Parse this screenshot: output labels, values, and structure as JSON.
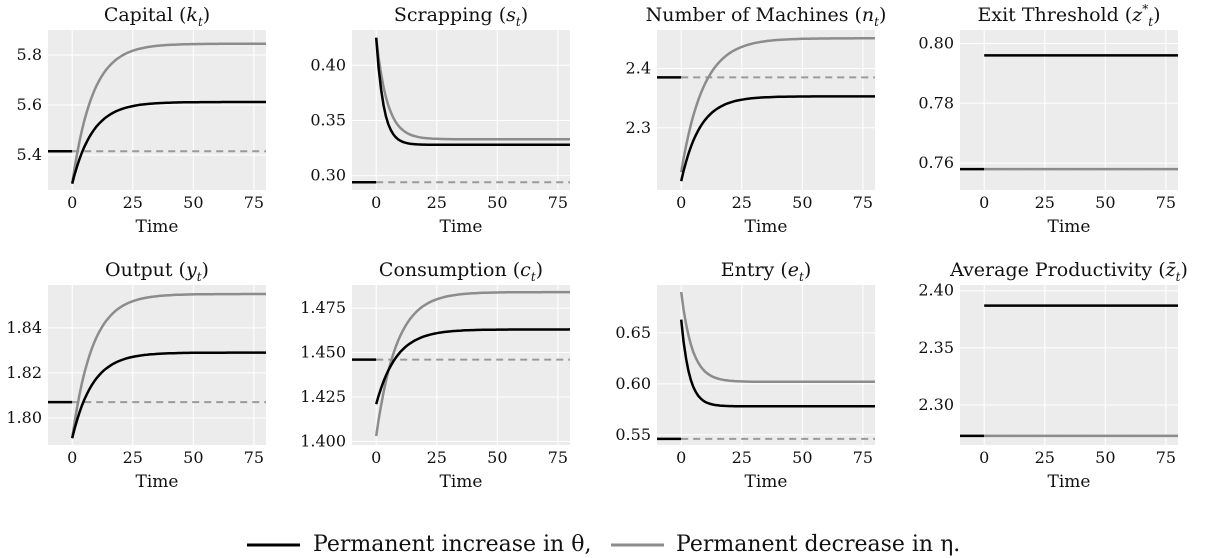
{
  "legend": {
    "increase_theta": "Permanent increase in θ,",
    "decrease_eta": "Permanent decrease in η.",
    "colors": {
      "increase_theta": "#000000",
      "decrease_eta": "#8c8c8c",
      "steady_state": "#9a9a9a",
      "panel_bg": "#ececec"
    }
  },
  "chart_data": [
    {
      "type": "line",
      "title": "Capital (k_t)",
      "title_text": "Capital (",
      "title_var": "k",
      "title_sub": "t",
      "title_close": ")",
      "xlabel": "Time",
      "ylabel": "",
      "xlim": [
        -10,
        80
      ],
      "ylim": [
        5.26,
        5.9
      ],
      "xticks": [
        0,
        25,
        50,
        75
      ],
      "yticks": [
        5.4,
        5.6,
        5.8
      ],
      "ytick_labels": [
        "5.4",
        "5.6",
        "5.8"
      ],
      "pre_shock": 5.415,
      "series": [
        {
          "key": "increase_theta",
          "start": 5.285,
          "end": 5.612,
          "speed": 0.12
        },
        {
          "key": "decrease_eta",
          "start": 5.285,
          "end": 5.845,
          "speed": 0.12
        }
      ]
    },
    {
      "type": "line",
      "title": "Scrapping (s_t)",
      "title_text": "Scrapping (",
      "title_var": "s",
      "title_sub": "t",
      "title_close": ")",
      "xlabel": "Time",
      "ylabel": "",
      "xlim": [
        -10,
        80
      ],
      "ylim": [
        0.287,
        0.432
      ],
      "xticks": [
        0,
        25,
        50,
        75
      ],
      "yticks": [
        0.3,
        0.35,
        0.4
      ],
      "ytick_labels": [
        "0.30",
        "0.35",
        "0.40"
      ],
      "pre_shock": 0.294,
      "series": [
        {
          "key": "increase_theta",
          "start": 0.425,
          "end": 0.328,
          "speed": 0.33
        },
        {
          "key": "decrease_eta",
          "start": 0.425,
          "end": 0.333,
          "speed": 0.22
        }
      ]
    },
    {
      "type": "line",
      "title": "Number of Machines (n_t)",
      "title_text": "Number of Machines (",
      "title_var": "n",
      "title_sub": "t",
      "title_close": ")",
      "xlabel": "Time",
      "ylabel": "",
      "xlim": [
        -10,
        80
      ],
      "ylim": [
        2.195,
        2.465
      ],
      "xticks": [
        0,
        25,
        50,
        75
      ],
      "yticks": [
        2.3,
        2.4
      ],
      "ytick_labels": [
        "2.3",
        "2.4"
      ],
      "pre_shock": 2.385,
      "series": [
        {
          "key": "increase_theta",
          "start": 2.21,
          "end": 2.353,
          "speed": 0.13
        },
        {
          "key": "decrease_eta",
          "start": 2.225,
          "end": 2.451,
          "speed": 0.11
        }
      ]
    },
    {
      "type": "line",
      "title": "Exit Threshold (z*_t)",
      "title_text": "Exit Threshold (",
      "title_var": "z",
      "title_sup": "*",
      "title_sub": "t",
      "title_close": ")",
      "xlabel": "Time",
      "ylabel": "",
      "xlim": [
        -10,
        80
      ],
      "ylim": [
        0.751,
        0.8045
      ],
      "xticks": [
        0,
        25,
        50,
        75
      ],
      "yticks": [
        0.76,
        0.78,
        0.8
      ],
      "ytick_labels": [
        "0.76",
        "0.78",
        "0.80"
      ],
      "pre_shock": 0.758,
      "series": [
        {
          "key": "increase_theta",
          "start": 0.796,
          "end": 0.796,
          "speed": 1
        },
        {
          "key": "decrease_eta",
          "start": 0.758,
          "end": 0.758,
          "speed": 1
        }
      ]
    },
    {
      "type": "line",
      "title": "Output (y_t)",
      "title_text": "Output (",
      "title_var": "y",
      "title_sub": "t",
      "title_close": ")",
      "xlabel": "Time",
      "ylabel": "",
      "xlim": [
        -10,
        80
      ],
      "ylim": [
        1.788,
        1.859
      ],
      "xticks": [
        0,
        25,
        50,
        75
      ],
      "yticks": [
        1.8,
        1.82,
        1.84
      ],
      "ytick_labels": [
        "1.80",
        "1.82",
        "1.84"
      ],
      "pre_shock": 1.807,
      "series": [
        {
          "key": "increase_theta",
          "start": 1.791,
          "end": 1.829,
          "speed": 0.12
        },
        {
          "key": "decrease_eta",
          "start": 1.791,
          "end": 1.855,
          "speed": 0.12
        }
      ]
    },
    {
      "type": "line",
      "title": "Consumption (c_t)",
      "title_text": "Consumption (",
      "title_var": "c",
      "title_sub": "t",
      "title_close": ")",
      "xlabel": "Time",
      "ylabel": "",
      "xlim": [
        -10,
        80
      ],
      "ylim": [
        1.398,
        1.488
      ],
      "xticks": [
        0,
        25,
        50,
        75
      ],
      "yticks": [
        1.4,
        1.425,
        1.45,
        1.475
      ],
      "ytick_labels": [
        "1.400",
        "1.425",
        "1.450",
        "1.475"
      ],
      "pre_shock": 1.446,
      "series": [
        {
          "key": "increase_theta",
          "start": 1.421,
          "end": 1.463,
          "speed": 0.12
        },
        {
          "key": "decrease_eta",
          "start": 1.403,
          "end": 1.484,
          "speed": 0.12
        }
      ]
    },
    {
      "type": "line",
      "title": "Entry (e_t)",
      "title_text": "Entry (",
      "title_var": "e",
      "title_sub": "t",
      "title_close": ")",
      "xlabel": "Time",
      "ylabel": "",
      "xlim": [
        -10,
        80
      ],
      "ylim": [
        0.54,
        0.697
      ],
      "xticks": [
        0,
        25,
        50,
        75
      ],
      "yticks": [
        0.55,
        0.6,
        0.65
      ],
      "ytick_labels": [
        "0.55",
        "0.60",
        "0.65"
      ],
      "pre_shock": 0.546,
      "series": [
        {
          "key": "increase_theta",
          "start": 0.663,
          "end": 0.578,
          "speed": 0.3
        },
        {
          "key": "decrease_eta",
          "start": 0.69,
          "end": 0.602,
          "speed": 0.22
        }
      ]
    },
    {
      "type": "line",
      "title": "Average Productivity (z̄_t)",
      "title_text": "Average Productivity (",
      "title_var": "z̄",
      "title_sub": "t",
      "title_close": ")",
      "xlabel": "Time",
      "ylabel": "",
      "xlim": [
        -10,
        80
      ],
      "ylim": [
        2.265,
        2.405
      ],
      "xticks": [
        0,
        25,
        50,
        75
      ],
      "yticks": [
        2.3,
        2.35,
        2.4
      ],
      "ytick_labels": [
        "2.30",
        "2.35",
        "2.40"
      ],
      "pre_shock": 2.273,
      "series": [
        {
          "key": "increase_theta",
          "start": 2.387,
          "end": 2.387,
          "speed": 1
        },
        {
          "key": "decrease_eta",
          "start": 2.273,
          "end": 2.273,
          "speed": 1
        }
      ]
    }
  ]
}
